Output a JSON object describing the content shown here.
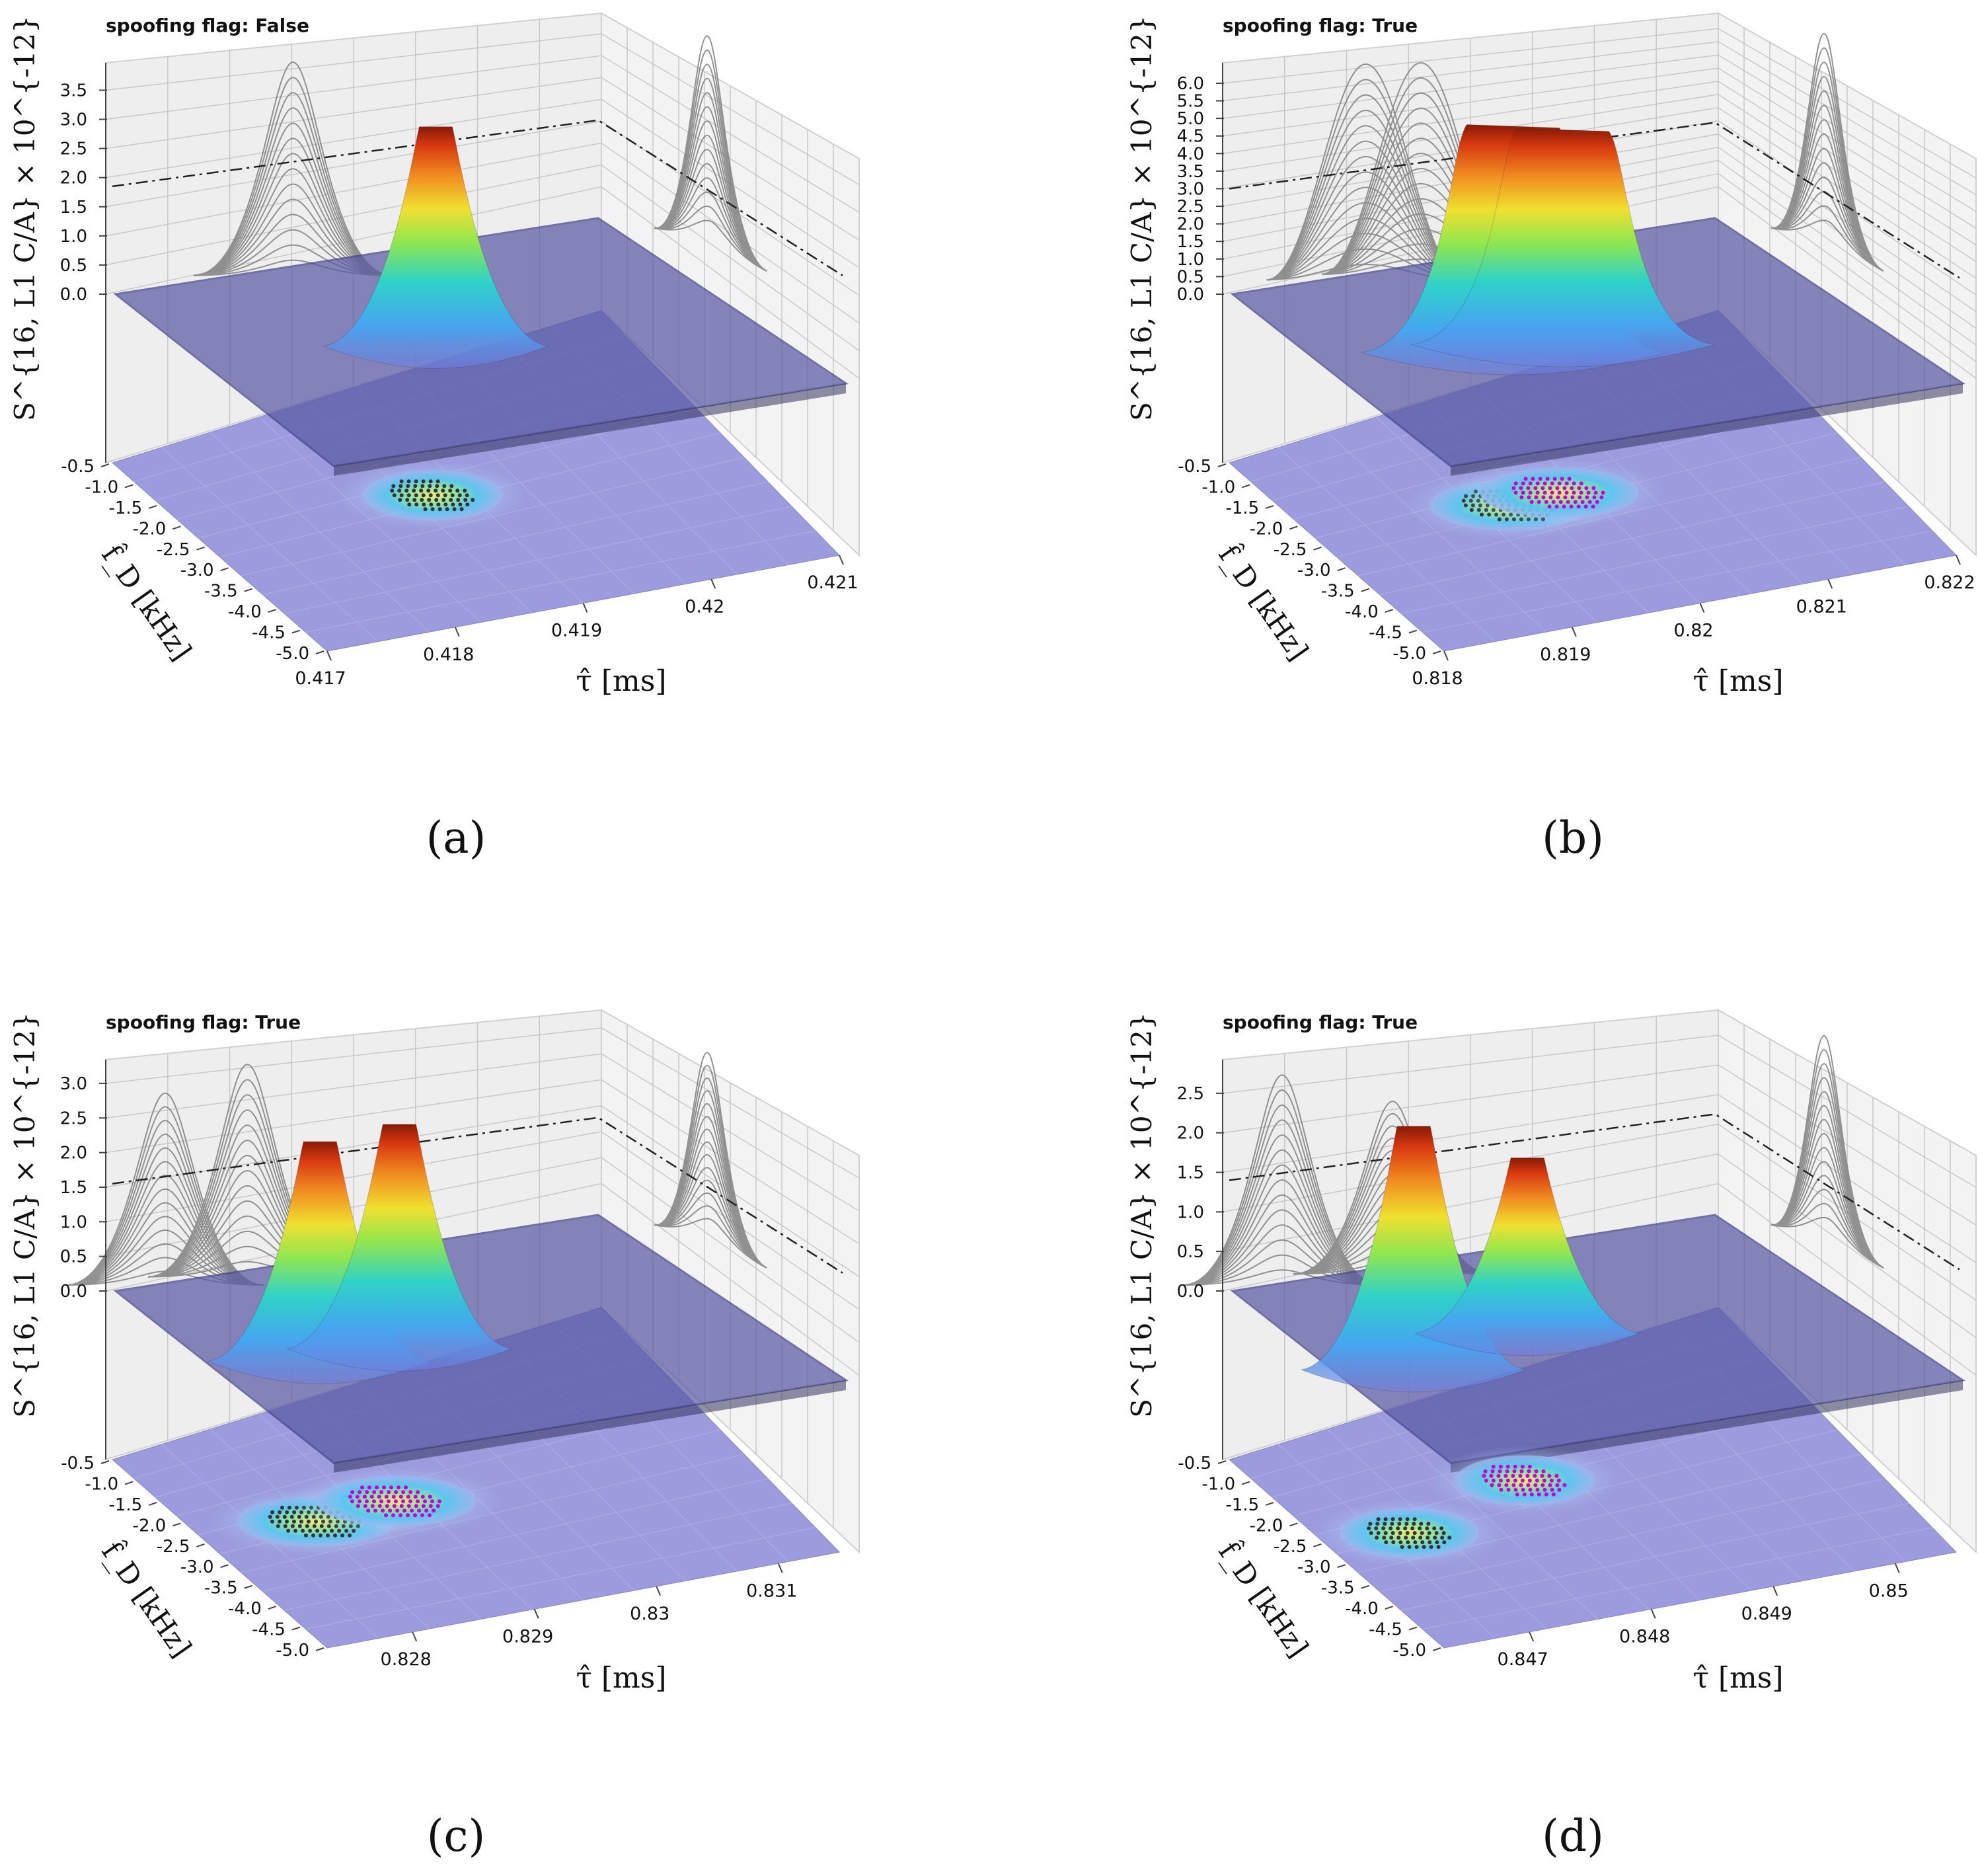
{
  "figure": {
    "panels": [
      {
        "id": "a",
        "caption": "(a)",
        "title": "spoofing flag: False"
      },
      {
        "id": "b",
        "caption": "(b)",
        "title": "spoofing flag: True"
      },
      {
        "id": "c",
        "caption": "(c)",
        "title": "spoofing flag: True"
      },
      {
        "id": "d",
        "caption": "(d)",
        "title": "spoofing flag: True"
      }
    ]
  },
  "colors": {
    "pane": "#eeeeee",
    "grid": "#c8c8c8",
    "surface_plane": "#5a5aa6",
    "floor_plane": "#8a8ad8",
    "profile_lines": "#808080",
    "threshold_line": "#222222",
    "authentic_dots": "#333333",
    "spoofed_dots": "#cc00cc"
  },
  "chart_data": [
    {
      "type": "surface3d",
      "title": "spoofing flag: False",
      "zlabel": "S^{16, L1 C/A} × 10^{-12}",
      "xlabel": "τ̂ [ms]",
      "ylabel": "f̂_D [kHz]",
      "x_ticks": [
        "0.417",
        "0.418",
        "0.419",
        "0.42",
        "0.421"
      ],
      "y_ticks": [
        "-0.5",
        "-1.0",
        "-1.5",
        "-2.0",
        "-2.5",
        "-3.0",
        "-3.5",
        "-4.0",
        "-4.5",
        "-5.0"
      ],
      "z_ticks": [
        "0.0",
        "0.5",
        "1.0",
        "1.5",
        "2.0",
        "2.5",
        "3.0",
        "3.5"
      ],
      "zlim": [
        0,
        3.8
      ],
      "threshold": 1.85,
      "peaks": [
        {
          "tau": 0.4187,
          "fd": -2.6,
          "height": 3.1,
          "class": "authentic",
          "shape": "single"
        }
      ]
    },
    {
      "type": "surface3d",
      "title": "spoofing flag: True",
      "zlabel": "S^{16, L1 C/A} × 10^{-12}",
      "xlabel": "τ̂ [ms]",
      "ylabel": "f̂_D [kHz]",
      "x_ticks": [
        "0.818",
        "0.819",
        "0.82",
        "0.821",
        "0.822"
      ],
      "y_ticks": [
        "-0.5",
        "-1.0",
        "-1.5",
        "-2.0",
        "-2.5",
        "-3.0",
        "-3.5",
        "-4.0",
        "-4.5",
        "-5.0"
      ],
      "z_ticks": [
        "0.0",
        "0.5",
        "1.0",
        "1.5",
        "2.0",
        "2.5",
        "3.0",
        "3.5",
        "4.0",
        "4.5",
        "5.0",
        "5.5",
        "6.0"
      ],
      "zlim": [
        0,
        6.3
      ],
      "threshold": 3.0,
      "peaks": [
        {
          "tau": 0.8193,
          "fd": -2.6,
          "height": 5.2,
          "class": "authentic",
          "shape": "plateau"
        },
        {
          "tau": 0.8198,
          "fd": -2.6,
          "height": 5.1,
          "class": "spoofed",
          "shape": "plateau"
        }
      ]
    },
    {
      "type": "surface3d",
      "title": "spoofing flag: True",
      "zlabel": "S^{16, L1 C/A} × 10^{-12}",
      "xlabel": "τ̂ [ms]",
      "ylabel": "f̂_D [kHz]",
      "x_ticks": [
        "0.828",
        "0.829",
        "0.83",
        "0.831"
      ],
      "y_ticks": [
        "-0.5",
        "-1.0",
        "-1.5",
        "-2.0",
        "-2.5",
        "-3.0",
        "-3.5",
        "-4.0",
        "-4.5",
        "-5.0"
      ],
      "z_ticks": [
        "0.0",
        "0.5",
        "1.0",
        "1.5",
        "2.0",
        "2.5",
        "3.0"
      ],
      "zlim": [
        0,
        3.2
      ],
      "threshold": 1.55,
      "peaks": [
        {
          "tau": 0.8284,
          "fd": -2.6,
          "height": 2.35,
          "class": "authentic",
          "shape": "single"
        },
        {
          "tau": 0.829,
          "fd": -2.6,
          "height": 2.6,
          "class": "spoofed",
          "shape": "single"
        }
      ]
    },
    {
      "type": "surface3d",
      "title": "spoofing flag: True",
      "zlabel": "S^{16, L1 C/A} × 10^{-12}",
      "xlabel": "τ̂ [ms]",
      "ylabel": "f̂_D [kHz]",
      "x_ticks": [
        "0.847",
        "0.848",
        "0.849",
        "0.85"
      ],
      "y_ticks": [
        "-0.5",
        "-1.0",
        "-1.5",
        "-2.0",
        "-2.5",
        "-3.0",
        "-3.5",
        "-4.0",
        "-4.5",
        "-5.0"
      ],
      "z_ticks": [
        "0.0",
        "0.5",
        "1.0",
        "1.5",
        "2.0",
        "2.5"
      ],
      "zlim": [
        0,
        2.8
      ],
      "threshold": 1.4,
      "peaks": [
        {
          "tau": 0.8471,
          "fd": -2.7,
          "height": 2.25,
          "class": "authentic",
          "shape": "single"
        },
        {
          "tau": 0.8482,
          "fd": -2.3,
          "height": 1.85,
          "class": "spoofed",
          "shape": "single"
        }
      ]
    }
  ]
}
